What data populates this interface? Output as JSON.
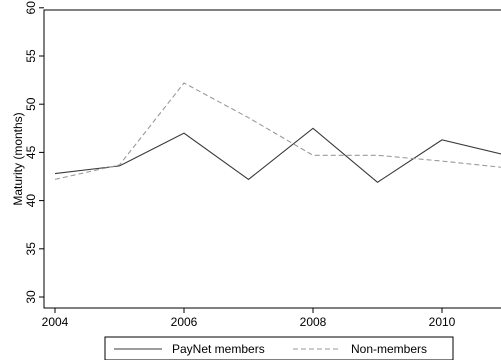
{
  "chart_data": {
    "type": "line",
    "title": "",
    "xlabel": "",
    "ylabel": "Maturity (months)",
    "x": [
      2004,
      2005,
      2006,
      2007,
      2008,
      2009,
      2010,
      2011
    ],
    "xticks": [
      "2004",
      "2006",
      "2008",
      "2010"
    ],
    "yticks": [
      "30",
      "35",
      "40",
      "45",
      "50",
      "55",
      "60"
    ],
    "xlim": [
      2004,
      2011
    ],
    "ylim": [
      29,
      61
    ],
    "grid": false,
    "legend": "bottom",
    "series": [
      {
        "name": "PayNet members",
        "values": [
          42.8,
          43.6,
          47.0,
          42.2,
          47.5,
          41.9,
          46.3,
          44.7
        ],
        "color": "#3a3a3a",
        "dash": "solid"
      },
      {
        "name": "Non-members",
        "values": [
          42.2,
          43.7,
          52.2,
          48.6,
          44.7,
          44.7,
          44.1,
          43.4
        ],
        "color": "#9a9a9a",
        "dash": "dashed"
      }
    ]
  }
}
